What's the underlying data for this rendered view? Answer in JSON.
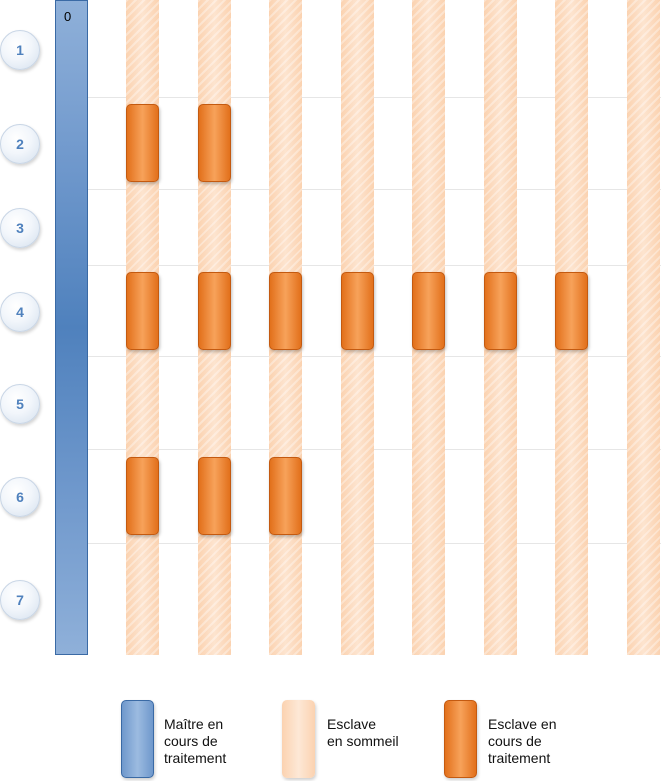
{
  "master": {
    "label": "0"
  },
  "steps": [
    "1",
    "2",
    "3",
    "4",
    "5",
    "6",
    "7"
  ],
  "slave_count": 8,
  "active_slaves_per_step": {
    "2": [
      1,
      2
    ],
    "4": [
      1,
      2,
      3,
      4,
      5,
      6,
      7
    ],
    "6": [
      1,
      2,
      3
    ]
  },
  "legend": {
    "master": "Maître en\ncours de\ntraitement",
    "sleeping": "Esclave\nen sommeil",
    "active": "Esclave en\ncours de\ntraitement"
  },
  "colors": {
    "master": "#4f81bd",
    "slave_sleeping": "#fbd2b0",
    "slave_active": "#f08020",
    "step_text": "#4f81bd"
  }
}
